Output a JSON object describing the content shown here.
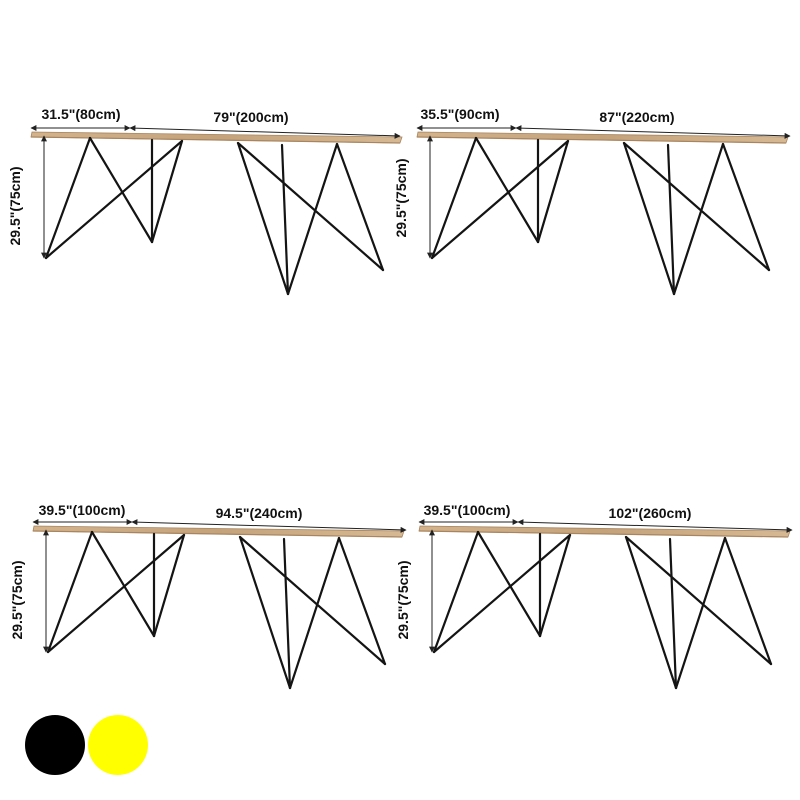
{
  "tables": [
    {
      "width_label": "31.5\"(80cm)",
      "length_label": "79\"(200cm)",
      "height_label": "29.5\"(75cm)"
    },
    {
      "width_label": "35.5\"(90cm)",
      "length_label": "87\"(220cm)",
      "height_label": "29.5\"(75cm)"
    },
    {
      "width_label": "39.5\"(100cm)",
      "length_label": "94.5\"(240cm)",
      "height_label": "29.5\"(75cm)"
    },
    {
      "width_label": "39.5\"(100cm)",
      "length_label": "102\"(260cm)",
      "height_label": "29.5\"(75cm)"
    }
  ],
  "colors": {
    "wood": "#c9a982",
    "wood_dark": "#a88560",
    "metal": "#141414",
    "swatches": [
      "#000000",
      "#ffff00"
    ]
  }
}
